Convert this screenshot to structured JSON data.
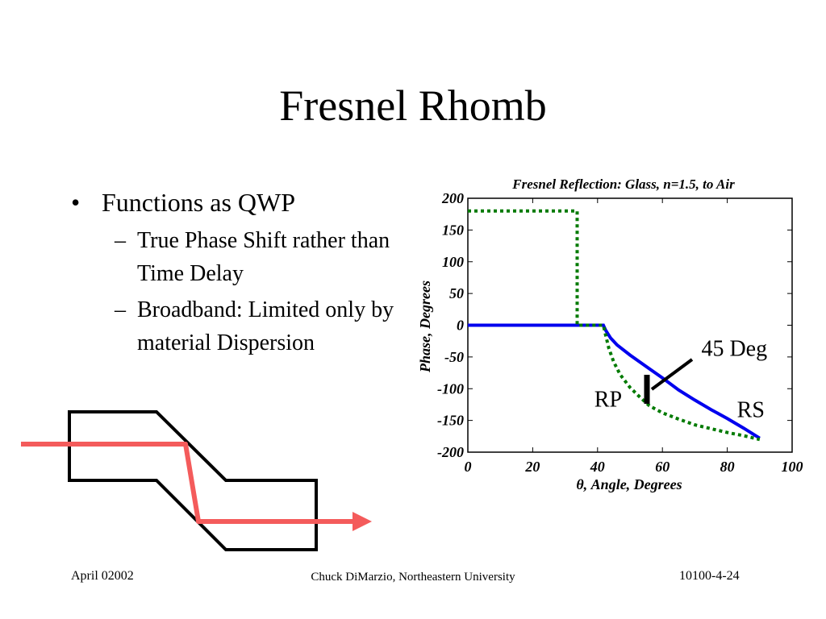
{
  "slide": {
    "title": "Fresnel Rhomb",
    "bullet": "Functions as QWP",
    "sub_bullets": [
      "True Phase Shift rather than Time Delay",
      "Broadband: Limited only  by material Dispersion"
    ],
    "footer": {
      "left": "April 02002",
      "center": "Chuck DiMarzio, Northeastern University",
      "right": "10100-4-24"
    }
  },
  "colors": {
    "rs_line": "#0000ee",
    "rp_line": "#007a00",
    "beam": "#f45b5b",
    "rhomb": "#000000"
  },
  "chart_data": {
    "type": "line",
    "title": "Fresnel Reflection: Glass, n=1.5, to Air",
    "xlabel_symbol": "θ",
    "xlabel": ", Angle, Degrees",
    "ylabel": "Phase, Degrees",
    "xlim": [
      0,
      100
    ],
    "ylim": [
      -200,
      200
    ],
    "xticks": [
      0,
      20,
      40,
      60,
      80,
      100
    ],
    "yticks": [
      200,
      150,
      100,
      50,
      0,
      -50,
      -100,
      -150,
      -200
    ],
    "grid": false,
    "series": [
      {
        "name": "RS",
        "style": "solid",
        "x": [
          0,
          41.8,
          42.5,
          44,
          46,
          50,
          55,
          60,
          65,
          70,
          75,
          80,
          85,
          90
        ],
        "y": [
          0,
          0,
          -8,
          -20,
          -31,
          -47,
          -65,
          -83,
          -102,
          -118,
          -133,
          -147,
          -162,
          -178
        ]
      },
      {
        "name": "RP",
        "style": "dotted",
        "x": [
          0,
          33.7,
          33.7,
          41.8,
          42.5,
          43.5,
          45,
          47,
          50,
          53,
          56,
          60,
          65,
          70,
          75,
          80,
          85,
          90
        ],
        "y": [
          180,
          180,
          0,
          0,
          -16,
          -37,
          -58,
          -78,
          -98,
          -113,
          -127,
          -138,
          -148,
          -157,
          -163,
          -169,
          -174,
          -180
        ]
      }
    ],
    "annotations": [
      {
        "text": "45 Deg",
        "x": 72,
        "y": -48
      },
      {
        "text": "RP",
        "x": 39,
        "y": -128
      },
      {
        "text": "RS",
        "x": 83,
        "y": -145
      }
    ]
  }
}
